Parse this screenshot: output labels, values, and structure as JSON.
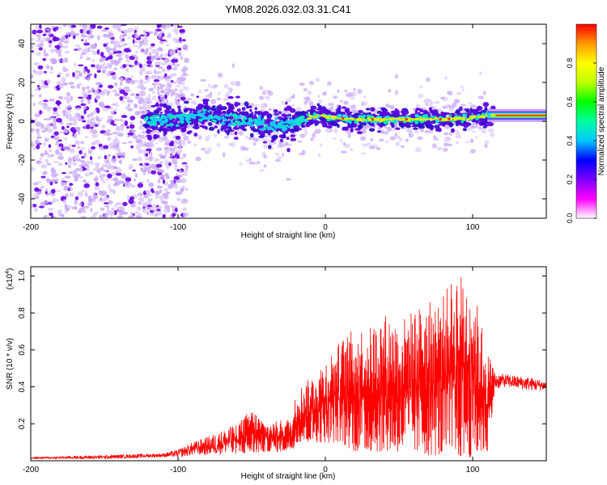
{
  "figure_title": "YM08.2026.032.03.31.C41",
  "chart_data": [
    {
      "type": "heatmap",
      "title": "YM08.2026.032.03.31.C41",
      "xlabel": "Height of straight line (km)",
      "ylabel": "Frequency (Hz)",
      "xlim": [
        -200,
        150
      ],
      "ylim": [
        -50,
        50
      ],
      "xticks": [
        -200,
        -100,
        0,
        100
      ],
      "yticks": [
        -40,
        -20,
        0,
        20,
        40
      ],
      "colorbar": {
        "label": "Normalized spectral amplitude",
        "range": [
          0,
          1
        ],
        "ticks": [
          0.0,
          0.2,
          0.4,
          0.6,
          0.8
        ],
        "colormap": [
          "#ffffff",
          "#ff00ff",
          "#7a00ff",
          "#0000ff",
          "#00c8ff",
          "#00ffa0",
          "#00ff00",
          "#c0ff00",
          "#ffff00",
          "#ff9a00",
          "#ff0000"
        ]
      },
      "ridge": {
        "description": "frequency of spectral peak vs height",
        "x": [
          -120,
          -105,
          -90,
          -80,
          -70,
          -60,
          -50,
          -40,
          -33,
          -25,
          -15,
          -5,
          5,
          20,
          40,
          60,
          80,
          100,
          110,
          150
        ],
        "frequency": [
          0,
          1,
          2,
          3,
          2,
          1,
          0,
          -1,
          -3,
          -2,
          1,
          3,
          2,
          1,
          1,
          1,
          1,
          2,
          3,
          3
        ]
      },
      "noise_region_x": [
        -200,
        -100
      ]
    },
    {
      "type": "line",
      "xlabel": "Height of straight line (km)",
      "ylabel": "SNR (10 * v/v)",
      "scale_label": "(x10",
      "scale_exp": "4",
      "scale_close": ")",
      "xlim": [
        -200,
        150
      ],
      "ylim": [
        0,
        1.05
      ],
      "xticks": [
        -200,
        -100,
        0,
        100
      ],
      "yticks": [
        0.2,
        0.4,
        0.6,
        0.8,
        1.0
      ],
      "series": [
        {
          "name": "SNR",
          "color": "#ff0000",
          "envelope": {
            "x": [
              -200,
              -150,
              -110,
              -100,
              -90,
              -80,
              -60,
              -50,
              -40,
              -30,
              -22,
              -20,
              -10,
              0,
              10,
              20,
              30,
              40,
              50,
              60,
              70,
              80,
              90,
              100,
              110,
              115,
              120,
              130,
              140,
              150
            ],
            "min": [
              0.01,
              0.01,
              0.02,
              0.02,
              0.03,
              0.03,
              0.04,
              0.04,
              0.05,
              0.05,
              0.06,
              0.1,
              0.1,
              0.1,
              0.1,
              0.05,
              0.05,
              0.05,
              0.05,
              0.05,
              0.03,
              0.03,
              0.02,
              0.02,
              0.05,
              0.38,
              0.4,
              0.39,
              0.38,
              0.38
            ],
            "max": [
              0.02,
              0.03,
              0.04,
              0.06,
              0.1,
              0.13,
              0.2,
              0.28,
              0.2,
              0.22,
              0.23,
              0.38,
              0.45,
              0.55,
              0.65,
              0.72,
              0.72,
              0.8,
              0.75,
              0.82,
              0.86,
              0.9,
              1.03,
              0.95,
              0.6,
              0.48,
              0.47,
              0.46,
              0.45,
              0.43
            ]
          }
        }
      ]
    }
  ]
}
